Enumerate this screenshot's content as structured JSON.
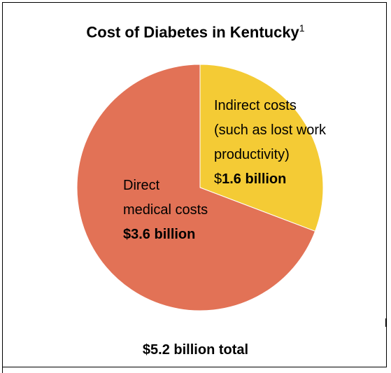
{
  "chart_data": {
    "type": "pie",
    "title": "Cost of Diabetes in Kentucky",
    "title_superscript": "1",
    "unit": "$ billion",
    "slices": [
      {
        "name": "Indirect costs (such as lost work productivity)",
        "label_lines": [
          "Indirect costs",
          "(such as lost work",
          "productivity)"
        ],
        "value_prefix": "$",
        "value_label": "1.6 billion",
        "value": 1.6,
        "color": "#f4cb35"
      },
      {
        "name": "Direct medical costs",
        "label_lines": [
          "Direct",
          "medical costs"
        ],
        "value_label": "$3.6 billion",
        "value": 3.6,
        "color": "#e27256"
      }
    ],
    "footer": "$5.2 billion total"
  }
}
